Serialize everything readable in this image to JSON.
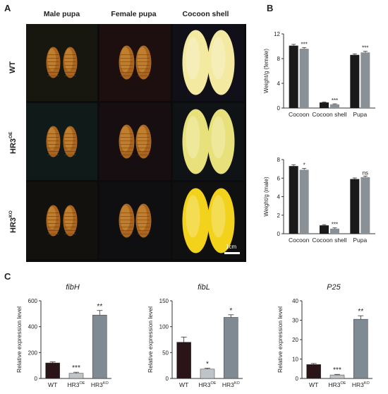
{
  "panels": {
    "a": "A",
    "b": "B",
    "c": "C"
  },
  "photo_panel": {
    "columns": [
      "Male pupa",
      "Female pupa",
      "Cocoon shell"
    ],
    "rows": [
      {
        "base": "WT",
        "sup": ""
      },
      {
        "base": "HR3",
        "sup": "OE"
      },
      {
        "base": "HR3",
        "sup": "KO"
      }
    ],
    "scale_bar": "1cm"
  },
  "chart_data": [
    {
      "id": "female_weight",
      "type": "bar",
      "ylabel": "Weight/g (female)",
      "ylim": [
        0,
        12
      ],
      "yticks": [
        0,
        4,
        8,
        12
      ],
      "categories": [
        "Cocoon",
        "Cocoon shell",
        "Pupa"
      ],
      "series": [
        {
          "values": [
            10.1,
            0.9,
            8.6
          ],
          "color": "#1a1a1a"
        },
        {
          "values": [
            9.6,
            0.6,
            9.0
          ],
          "color": "#8a9196"
        }
      ],
      "annotations": [
        "",
        "***",
        "",
        "***",
        "",
        "***"
      ]
    },
    {
      "id": "male_weight",
      "type": "bar",
      "ylabel": "Weight/g (male)",
      "ylim": [
        0,
        8
      ],
      "yticks": [
        0,
        2,
        4,
        6,
        8
      ],
      "categories": [
        "Cocoon",
        "Cocoon shell",
        "Pupa"
      ],
      "series": [
        {
          "values": [
            7.3,
            0.9,
            5.9
          ],
          "color": "#1a1a1a"
        },
        {
          "values": [
            6.9,
            0.55,
            6.1
          ],
          "color": "#8a9196"
        }
      ],
      "annotations": [
        "",
        "*",
        "",
        "***",
        "",
        "ns"
      ]
    },
    {
      "id": "fibH",
      "type": "bar",
      "title": "fibH",
      "ylabel": "Relative expression level",
      "ylim": [
        0,
        600
      ],
      "yticks": [
        0,
        200,
        400,
        600
      ],
      "categories": [
        "WT",
        "HR3OE",
        "HR3KO"
      ],
      "values": [
        120,
        40,
        490
      ],
      "errors": [
        8,
        8,
        35
      ],
      "colors": [
        "#2a1418",
        "#bfc4c8",
        "#7f8a92"
      ],
      "annotations": [
        "",
        "***",
        "**"
      ]
    },
    {
      "id": "fibL",
      "type": "bar",
      "title": "fibL",
      "ylabel": "Relative expression level",
      "ylim": [
        0,
        150
      ],
      "yticks": [
        0,
        50,
        100,
        150
      ],
      "categories": [
        "WT",
        "HR3OE",
        "HR3KO"
      ],
      "values": [
        70,
        18,
        118
      ],
      "errors": [
        10,
        2,
        5
      ],
      "colors": [
        "#2a1418",
        "#bfc4c8",
        "#7f8a92"
      ],
      "annotations": [
        "",
        "*",
        "*"
      ]
    },
    {
      "id": "P25",
      "type": "bar",
      "title": "P25",
      "ylabel": "Relative expression level",
      "ylim": [
        0,
        40
      ],
      "yticks": [
        0,
        10,
        20,
        30,
        40
      ],
      "categories": [
        "WT",
        "HR3OE",
        "HR3KO"
      ],
      "values": [
        7.2,
        1.8,
        30.5
      ],
      "errors": [
        0.5,
        0.3,
        1.8
      ],
      "colors": [
        "#2a1418",
        "#bfc4c8",
        "#7f8a92"
      ],
      "annotations": [
        "",
        "***",
        "**"
      ]
    }
  ]
}
